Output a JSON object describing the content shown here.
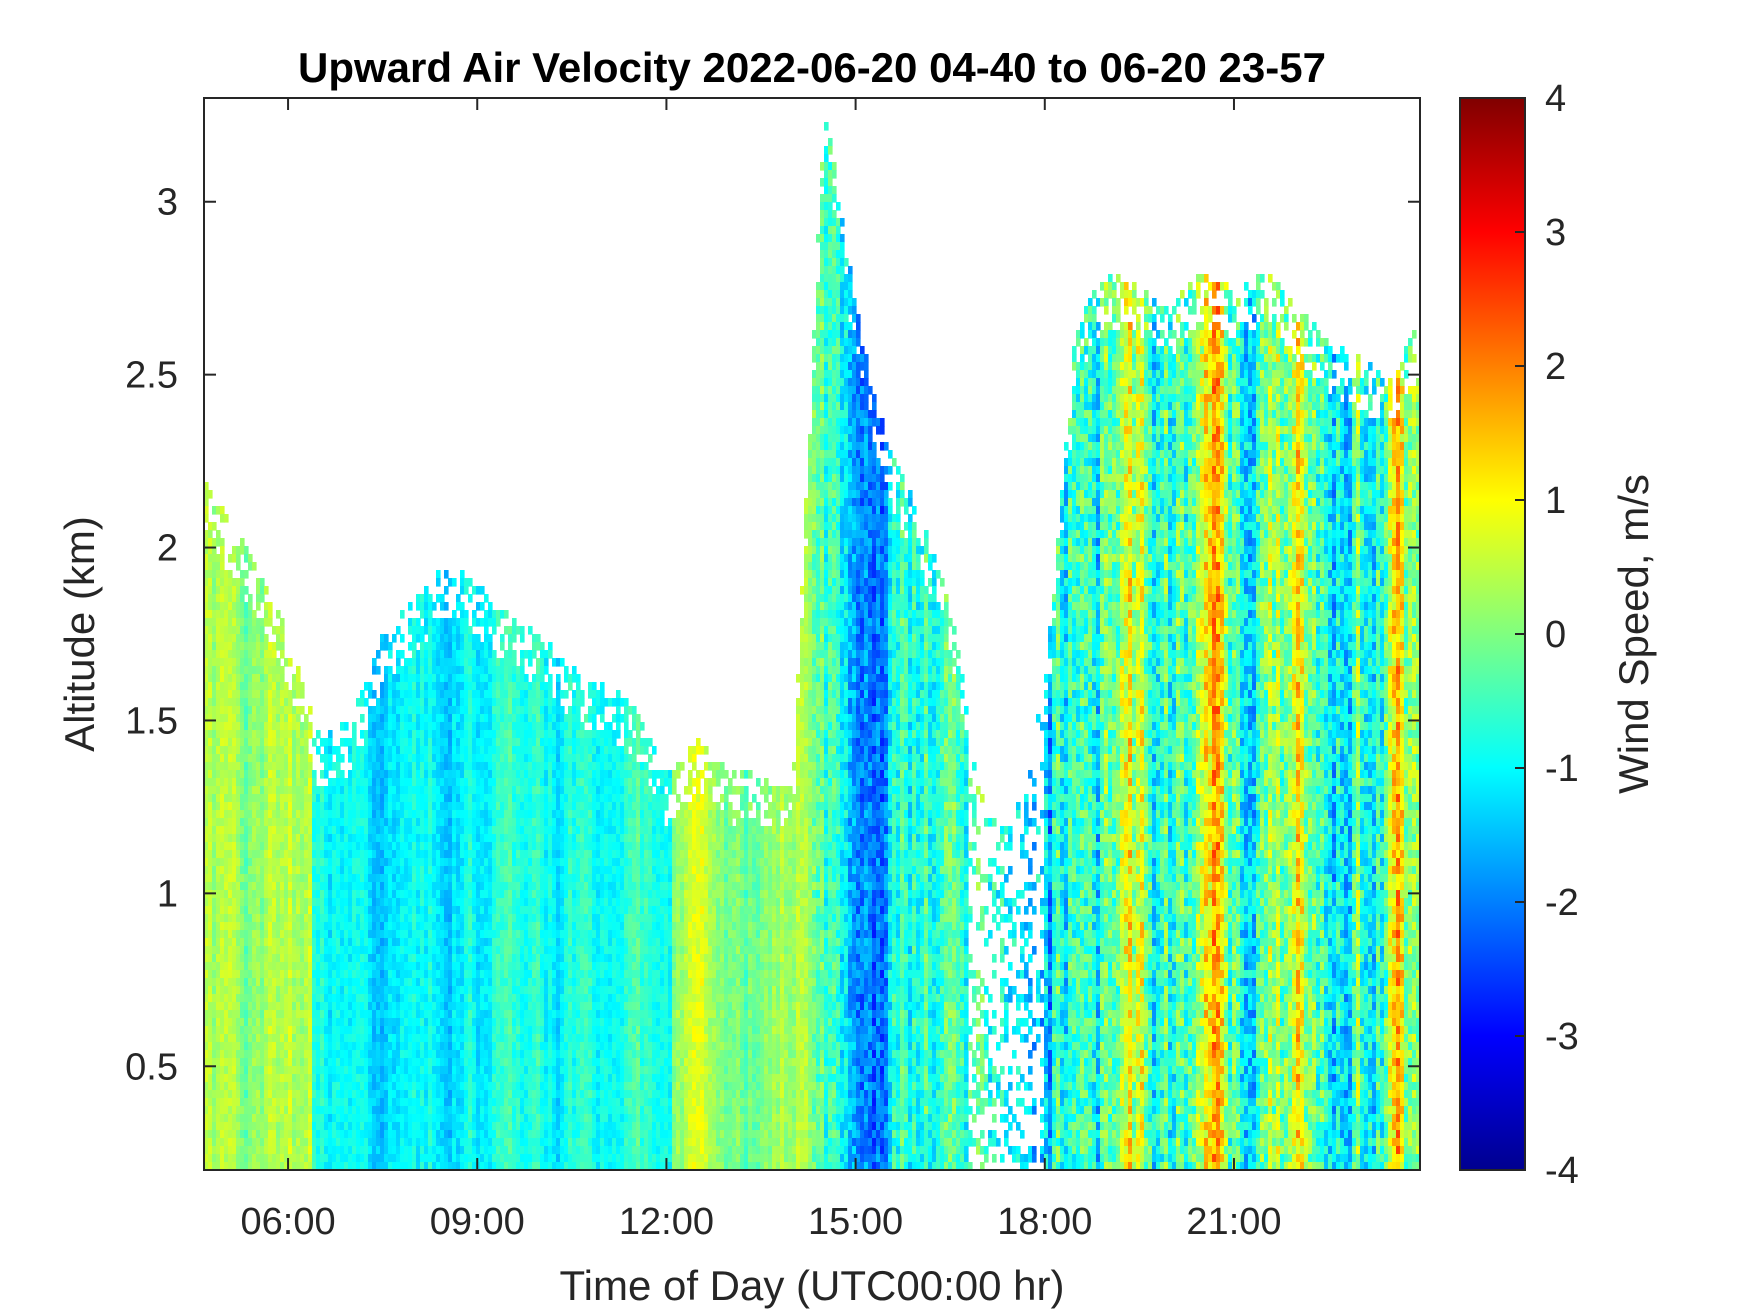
{
  "chart_data": {
    "type": "heatmap",
    "title": "Upward Air Velocity 2022-06-20 04-40 to 06-20 23-57",
    "xlabel": "Time of Day (UTC00:00 hr)",
    "ylabel": "Altitude (km)",
    "colorbar_label": "Wind Speed, m/s",
    "colormap": "jet",
    "xlim": [
      4.667,
      23.95
    ],
    "ylim": [
      0.2,
      3.3
    ],
    "clim": [
      -4,
      4
    ],
    "x_ticks": [
      {
        "value": 6,
        "label": "06:00"
      },
      {
        "value": 9,
        "label": "09:00"
      },
      {
        "value": 12,
        "label": "12:00"
      },
      {
        "value": 15,
        "label": "15:00"
      },
      {
        "value": 18,
        "label": "18:00"
      },
      {
        "value": 21,
        "label": "21:00"
      }
    ],
    "y_ticks": [
      {
        "value": 0.5,
        "label": "0.5"
      },
      {
        "value": 1,
        "label": "1"
      },
      {
        "value": 1.5,
        "label": "1.5"
      },
      {
        "value": 2,
        "label": "2"
      },
      {
        "value": 2.5,
        "label": "2.5"
      },
      {
        "value": 3,
        "label": "3"
      }
    ],
    "colorbar_ticks": [
      {
        "value": 4,
        "label": "4"
      },
      {
        "value": 3,
        "label": "3"
      },
      {
        "value": 2,
        "label": "2"
      },
      {
        "value": 1,
        "label": "1"
      },
      {
        "value": 0,
        "label": "0"
      },
      {
        "value": -1,
        "label": "-1"
      },
      {
        "value": -2,
        "label": "-2"
      },
      {
        "value": -3,
        "label": "-3"
      },
      {
        "value": -4,
        "label": "-4"
      }
    ],
    "data_top_profile": [
      {
        "time": 4.67,
        "top_km": 2.2
      },
      {
        "time": 5.0,
        "top_km": 2.1
      },
      {
        "time": 5.5,
        "top_km": 1.95
      },
      {
        "time": 6.0,
        "top_km": 1.75
      },
      {
        "time": 6.5,
        "top_km": 1.45
      },
      {
        "time": 7.0,
        "top_km": 1.5
      },
      {
        "time": 7.5,
        "top_km": 1.75
      },
      {
        "time": 8.0,
        "top_km": 1.85
      },
      {
        "time": 8.5,
        "top_km": 1.95
      },
      {
        "time": 9.0,
        "top_km": 1.9
      },
      {
        "time": 9.5,
        "top_km": 1.8
      },
      {
        "time": 10.0,
        "top_km": 1.75
      },
      {
        "time": 10.5,
        "top_km": 1.65
      },
      {
        "time": 11.0,
        "top_km": 1.6
      },
      {
        "time": 11.5,
        "top_km": 1.55
      },
      {
        "time": 12.0,
        "top_km": 1.35
      },
      {
        "time": 12.5,
        "top_km": 1.45
      },
      {
        "time": 13.0,
        "top_km": 1.35
      },
      {
        "time": 13.5,
        "top_km": 1.35
      },
      {
        "time": 14.0,
        "top_km": 1.3
      },
      {
        "time": 14.5,
        "top_km": 3.3
      },
      {
        "time": 15.0,
        "top_km": 2.7
      },
      {
        "time": 15.5,
        "top_km": 2.3
      },
      {
        "time": 16.0,
        "top_km": 2.1
      },
      {
        "time": 16.5,
        "top_km": 1.85
      },
      {
        "time": 17.0,
        "top_km": 1.3
      },
      {
        "time": 17.5,
        "top_km": 1.2
      },
      {
        "time": 18.0,
        "top_km": 1.6
      },
      {
        "time": 18.5,
        "top_km": 2.65
      },
      {
        "time": 19.0,
        "top_km": 2.8
      },
      {
        "time": 19.5,
        "top_km": 2.75
      },
      {
        "time": 20.0,
        "top_km": 2.7
      },
      {
        "time": 20.5,
        "top_km": 2.8
      },
      {
        "time": 21.0,
        "top_km": 2.75
      },
      {
        "time": 21.5,
        "top_km": 2.8
      },
      {
        "time": 22.0,
        "top_km": 2.7
      },
      {
        "time": 22.5,
        "top_km": 2.6
      },
      {
        "time": 23.0,
        "top_km": 2.55
      },
      {
        "time": 23.5,
        "top_km": 2.5
      },
      {
        "time": 23.95,
        "top_km": 2.65
      }
    ],
    "regime_mean_speed": [
      {
        "from": 4.67,
        "to": 6.4,
        "mean_m_s": 0.3
      },
      {
        "from": 6.4,
        "to": 12.1,
        "mean_m_s": -0.9
      },
      {
        "from": 12.1,
        "to": 14.3,
        "mean_m_s": 0.2
      },
      {
        "from": 14.3,
        "to": 17.9,
        "mean_m_s": -0.6
      },
      {
        "from": 17.9,
        "to": 23.95,
        "mean_m_s": -0.3
      }
    ]
  }
}
